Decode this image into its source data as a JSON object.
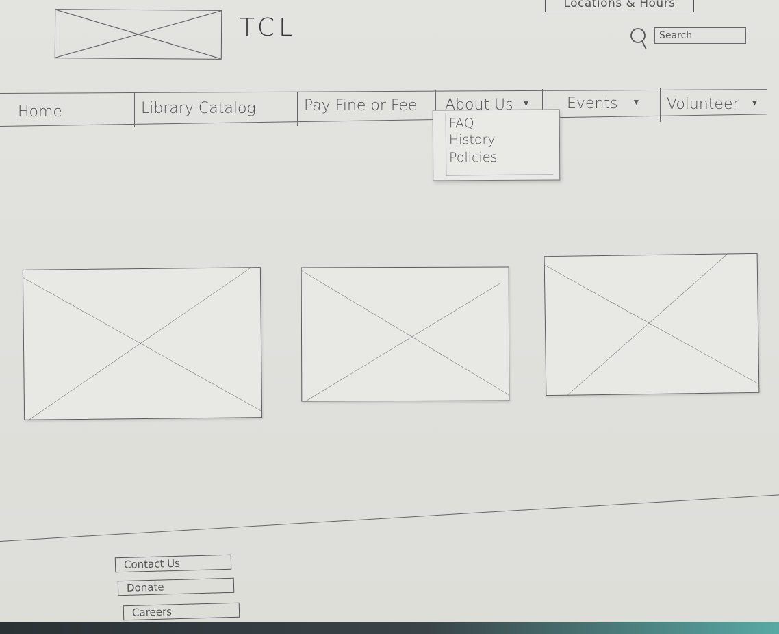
{
  "header": {
    "site_title": "TCL",
    "locations_label": "Locations & Hours",
    "search_placeholder": "Search"
  },
  "nav": {
    "items": [
      {
        "label": "Home",
        "has_dropdown": false
      },
      {
        "label": "Library Catalog",
        "has_dropdown": false
      },
      {
        "label": "Pay Fine or Fee",
        "has_dropdown": false
      },
      {
        "label": "About Us",
        "has_dropdown": true
      },
      {
        "label": "Events",
        "has_dropdown": true
      },
      {
        "label": "Volunteer",
        "has_dropdown": true
      }
    ],
    "caret": "▼"
  },
  "about_dropdown": {
    "items": [
      "FAQ",
      "History",
      "Policies"
    ]
  },
  "footer": {
    "links": [
      "Contact Us",
      "Donate",
      "Careers"
    ]
  },
  "icons": {
    "search": "search-icon",
    "placeholder_image": "image-placeholder-icon",
    "dropdown_caret": "caret-down-icon"
  },
  "colors": {
    "paper": "#e0e0dc",
    "ink": "#555555",
    "backdrop": "#2f3a3f"
  }
}
